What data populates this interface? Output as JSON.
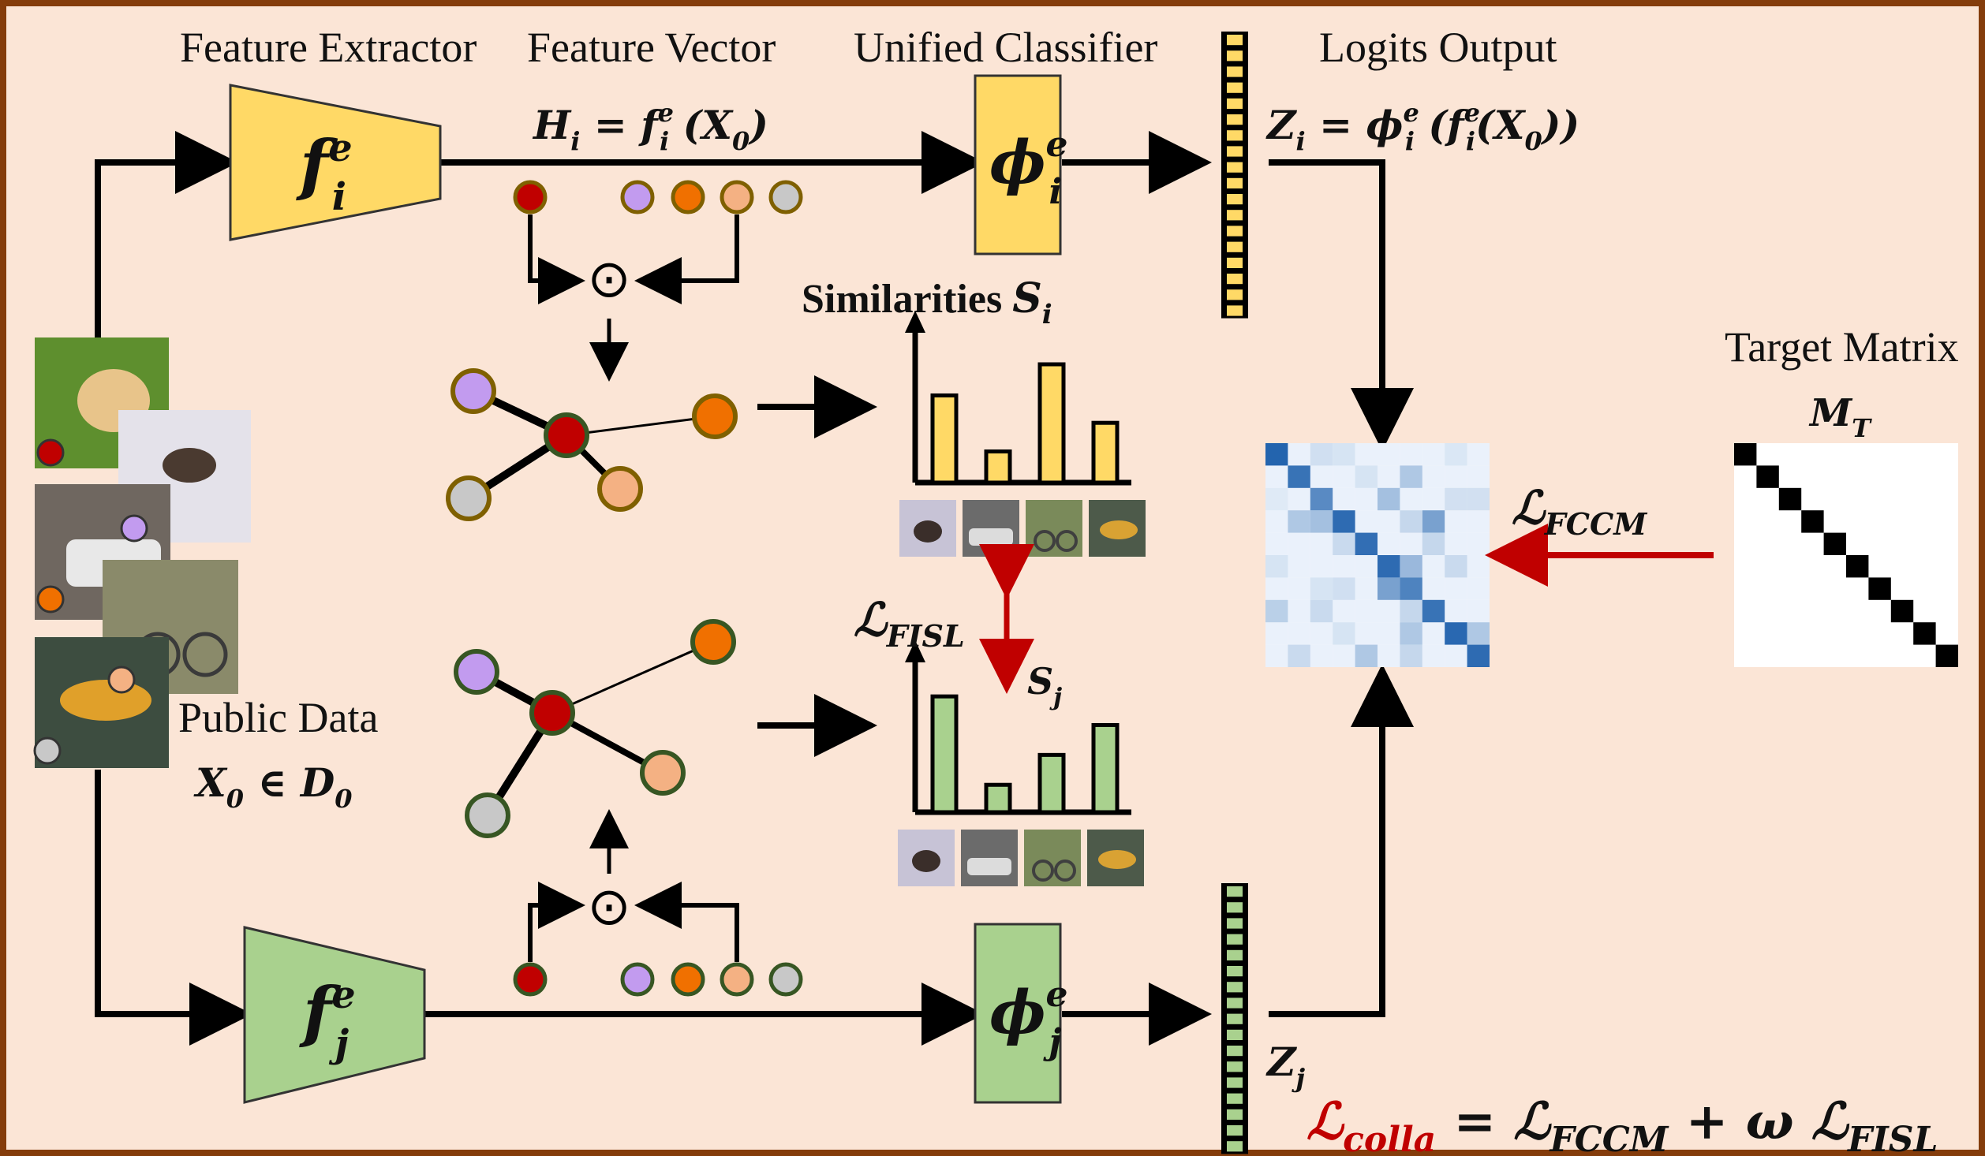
{
  "labels": {
    "feature_extractor": "Feature Extractor",
    "feature_vector": "Feature Vector",
    "unified_classifier": "Unified Classifier",
    "logits_output": "Logits Output",
    "target_matrix": "Target Matrix",
    "public_data": "Public Data",
    "similarities": "Similarities "
  },
  "math": {
    "fi_base": "f",
    "fi_sup": "e",
    "fi_sub": "i",
    "fj_base": "f",
    "fj_sup": "e",
    "fj_sub": "j",
    "phii_base": "ϕ",
    "phii_sup": "e",
    "phii_sub": "i",
    "phij_base": "ϕ",
    "phij_sup": "e",
    "phij_sub": "j",
    "hi_eq": {
      "h": "H",
      "h_sub": "i",
      "eq": " = ",
      "f": "f",
      "f_sup": "e",
      "f_sub": "i",
      "x": " (X",
      "x_sub": "0",
      "close": ")"
    },
    "zi_eq": {
      "z": "Z",
      "z_sub": "i",
      "eq": " = ",
      "phi": "ϕ",
      "phi_sup": "e",
      "phi_sub": "i",
      "p1": " (",
      "f": "f",
      "f_sup": "e",
      "f_sub": "i",
      "x": "(X",
      "x_sub": "0",
      "close": "))"
    },
    "zj": "Z",
    "zj_sub": "j",
    "mt": "M",
    "mt_sub": "T",
    "si": "S",
    "si_sub": "i",
    "sj": "S",
    "sj_sub": "j",
    "x0": "X",
    "x0_sub": "0",
    "x0_in": " ∈ D",
    "d0_sub": "0",
    "l_fccm": "ℒ",
    "l_fccm_sub": "FCCM",
    "l_fisl": "ℒ",
    "l_fisl_sub": "FISL",
    "odot": "⊙"
  },
  "formula": {
    "lhs": "ℒ",
    "lhs_sub": "colla",
    "eq": " =  ",
    "t1": "ℒ",
    "t1_sub": "FCCM",
    "plus": " + ω ",
    "t2": "ℒ",
    "t2_sub": "FISL"
  },
  "colors": {
    "background": "#fbe5d6",
    "border": "#843c0b",
    "yellow": "#ffd966",
    "green": "#a9d18e",
    "red_node": "#c00000",
    "purple_node": "#c29bef",
    "orange_node": "#f07000",
    "peach_node": "#f4b183",
    "gray_node": "#c8c8c8",
    "yellow_outline": "#7f6000",
    "green_outline": "#375623",
    "red_arrow": "#c00000",
    "heat_blue": "#2a6fb5"
  },
  "chart_i": {
    "values": [
      7,
      2.5,
      9.5,
      4.8
    ],
    "images": [
      "dog",
      "car",
      "bike",
      "fish"
    ]
  },
  "chart_j": {
    "values": [
      9.3,
      2.2,
      4.6,
      7
    ]
  },
  "node_colors": [
    "red",
    "purple",
    "orange",
    "peach",
    "gray"
  ],
  "heatmap": {
    "size": 10,
    "diagonal_strength": [
      0.95,
      0.85,
      0.7,
      0.9,
      0.88,
      0.9,
      0.75,
      0.85,
      0.92,
      0.9
    ],
    "off_diagonal": [
      [
        0,
        2,
        0.15
      ],
      [
        0,
        3,
        0.12
      ],
      [
        0,
        8,
        0.1
      ],
      [
        1,
        6,
        0.3
      ],
      [
        1,
        4,
        0.12
      ],
      [
        2,
        0,
        0.08
      ],
      [
        2,
        5,
        0.35
      ],
      [
        2,
        8,
        0.14
      ],
      [
        2,
        9,
        0.14
      ],
      [
        3,
        1,
        0.3
      ],
      [
        3,
        2,
        0.35
      ],
      [
        3,
        7,
        0.55
      ],
      [
        3,
        6,
        0.2
      ],
      [
        4,
        3,
        0.18
      ],
      [
        4,
        7,
        0.2
      ],
      [
        5,
        0,
        0.12
      ],
      [
        5,
        6,
        0.4
      ],
      [
        5,
        8,
        0.18
      ],
      [
        6,
        2,
        0.12
      ],
      [
        6,
        5,
        0.55
      ],
      [
        6,
        3,
        0.15
      ],
      [
        7,
        0,
        0.25
      ],
      [
        7,
        2,
        0.18
      ],
      [
        7,
        6,
        0.2
      ],
      [
        8,
        3,
        0.12
      ],
      [
        8,
        6,
        0.3
      ],
      [
        8,
        9,
        0.3
      ],
      [
        9,
        1,
        0.18
      ],
      [
        9,
        4,
        0.3
      ],
      [
        9,
        6,
        0.2
      ]
    ]
  }
}
